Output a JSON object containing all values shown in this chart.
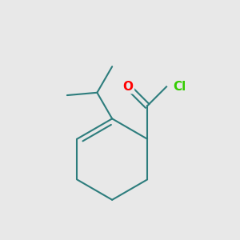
{
  "background_color": "#e8e8e8",
  "bond_color": "#2d7d7d",
  "O_color": "#ff0000",
  "Cl_color": "#33cc00",
  "O_label": "O",
  "Cl_label": "Cl",
  "font_size_atoms": 11,
  "line_width": 1.5
}
